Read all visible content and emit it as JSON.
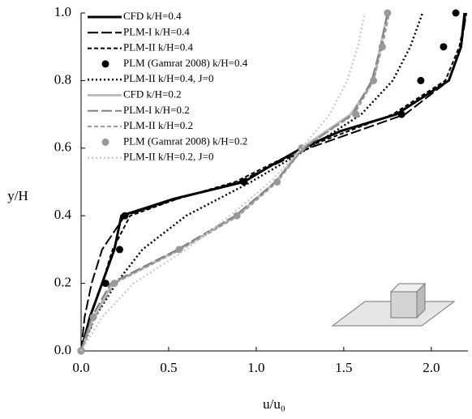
{
  "chart_data": {
    "type": "line",
    "x_label": "u/u₀",
    "y_label": "y/H",
    "xlim": [
      0,
      2.2
    ],
    "ylim": [
      0,
      1
    ],
    "xticks": [
      {
        "value": 0,
        "label": "0.0"
      },
      0.5,
      {
        "value": 1,
        "label": "1.0"
      },
      1.5,
      {
        "value": 2,
        "label": "2.0"
      }
    ],
    "yticks": [
      {
        "value": 0,
        "label": "0.0"
      },
      0.2,
      0.4,
      0.6,
      0.8,
      {
        "value": 1,
        "label": "1.0"
      }
    ],
    "legend": "upper left",
    "series": [
      {
        "name": "CFD k/H=0.4",
        "color": "#000000",
        "style": "solid",
        "x": [
          0,
          0.05,
          0.12,
          0.19,
          0.23,
          0.53,
          0.93,
          1.09,
          1.26,
          1.48,
          1.8,
          2.1,
          2.17,
          2.19
        ],
        "values": [
          0,
          0.1,
          0.2,
          0.3,
          0.4,
          0.45,
          0.5,
          0.55,
          0.6,
          0.65,
          0.7,
          0.8,
          0.9,
          1.0
        ]
      },
      {
        "name": "PLM-I k/H=0.4",
        "color": "#000000",
        "style": "longdash",
        "x": [
          0,
          0.02,
          0.06,
          0.12,
          0.25,
          0.55,
          0.9,
          1.3,
          1.85,
          2.1,
          2.17,
          2.2
        ],
        "values": [
          0,
          0.1,
          0.2,
          0.3,
          0.4,
          0.45,
          0.5,
          0.6,
          0.7,
          0.8,
          0.9,
          1.0
        ]
      },
      {
        "name": "PLM-II k/H=0.4",
        "color": "#000000",
        "style": "dash",
        "x": [
          0,
          0.05,
          0.12,
          0.18,
          0.28,
          0.55,
          0.88,
          1.27,
          1.78,
          2.08,
          2.16,
          2.2
        ],
        "values": [
          0,
          0.1,
          0.2,
          0.3,
          0.4,
          0.45,
          0.5,
          0.6,
          0.7,
          0.8,
          0.9,
          1.0
        ]
      },
      {
        "name": "PLM (Gamrat 2008) k/H=0.4",
        "color": "#000000",
        "style": "markers",
        "x": [
          0,
          0.14,
          0.22,
          0.25,
          0.93,
          1.26,
          1.83,
          1.94,
          2.07,
          2.14
        ],
        "values": [
          0,
          0.2,
          0.3,
          0.4,
          0.5,
          0.6,
          0.7,
          0.8,
          0.9,
          1.0
        ]
      },
      {
        "name": "PLM-II k/H=0.4, J=0",
        "color": "#000000",
        "style": "dot",
        "x": [
          0,
          0.08,
          0.2,
          0.35,
          0.6,
          0.97,
          1.3,
          1.6,
          1.78,
          1.88,
          1.95
        ],
        "values": [
          0,
          0.1,
          0.2,
          0.3,
          0.4,
          0.5,
          0.6,
          0.7,
          0.8,
          0.9,
          1.0
        ]
      },
      {
        "name": "CFD k/H=0.2",
        "color": "#bdbdbd",
        "style": "solid",
        "x": [
          0,
          0.07,
          0.18,
          0.56,
          0.89,
          1.11,
          1.26,
          1.54,
          1.67,
          1.71,
          1.75
        ],
        "values": [
          0,
          0.1,
          0.2,
          0.3,
          0.4,
          0.5,
          0.6,
          0.7,
          0.8,
          0.9,
          1.0
        ]
      },
      {
        "name": "PLM-I k/H=0.2",
        "color": "#808080",
        "style": "longdash",
        "x": [
          0,
          0.06,
          0.17,
          0.55,
          0.88,
          1.11,
          1.27,
          1.55,
          1.66,
          1.71,
          1.75
        ],
        "values": [
          0,
          0.1,
          0.2,
          0.3,
          0.4,
          0.5,
          0.6,
          0.7,
          0.8,
          0.9,
          1.0
        ]
      },
      {
        "name": "PLM-II k/H=0.2",
        "color": "#999999",
        "style": "dash",
        "x": [
          0,
          0.08,
          0.19,
          0.57,
          0.9,
          1.12,
          1.27,
          1.56,
          1.67,
          1.72,
          1.76
        ],
        "values": [
          0,
          0.1,
          0.2,
          0.3,
          0.4,
          0.5,
          0.6,
          0.7,
          0.8,
          0.9,
          1.0
        ]
      },
      {
        "name": "PLM (Gamrat 2008) k/H=0.2",
        "color": "#999999",
        "style": "markers",
        "x": [
          0,
          0.07,
          0.19,
          0.56,
          0.89,
          1.12,
          1.26,
          1.57,
          1.67,
          1.72,
          1.75
        ],
        "values": [
          0,
          0.1,
          0.2,
          0.3,
          0.4,
          0.5,
          0.6,
          0.7,
          0.8,
          0.9,
          1.0
        ]
      },
      {
        "name": "PLM-II k/H=0.2, J=0",
        "color": "#cccccc",
        "style": "dot",
        "x": [
          0,
          0.12,
          0.3,
          0.6,
          0.85,
          1.08,
          1.26,
          1.42,
          1.52,
          1.58,
          1.62
        ],
        "values": [
          0,
          0.1,
          0.2,
          0.3,
          0.4,
          0.5,
          0.6,
          0.7,
          0.8,
          0.9,
          1.0
        ]
      }
    ]
  }
}
